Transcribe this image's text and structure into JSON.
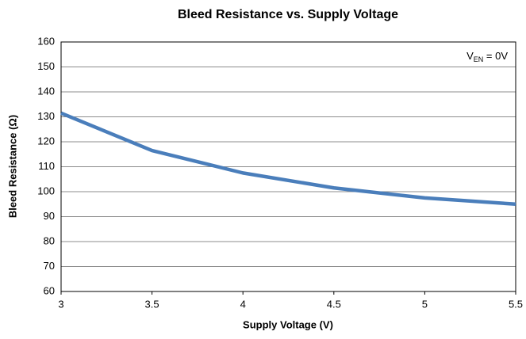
{
  "chart_data": {
    "type": "line",
    "title": "Bleed Resistance vs. Supply Voltage",
    "xlabel": "Supply Voltage (V)",
    "ylabel": "Bleed Resistance (Ω)",
    "annotation": [
      "V",
      "EN",
      " = 0V"
    ],
    "x": [
      3,
      3.5,
      4,
      4.5,
      5,
      5.5
    ],
    "series": [
      {
        "name": "Bleed Resistance",
        "color": "#4a7ebb",
        "values": [
          131.5,
          116.5,
          107.5,
          101.5,
          97.5,
          95
        ]
      }
    ],
    "xlim": [
      3,
      5.5
    ],
    "xticks": [
      3,
      3.5,
      4,
      4.5,
      5,
      5.5
    ],
    "ylim": [
      60,
      160
    ],
    "yticks": [
      60,
      70,
      80,
      90,
      100,
      110,
      120,
      130,
      140,
      150,
      160
    ],
    "grid": true
  }
}
